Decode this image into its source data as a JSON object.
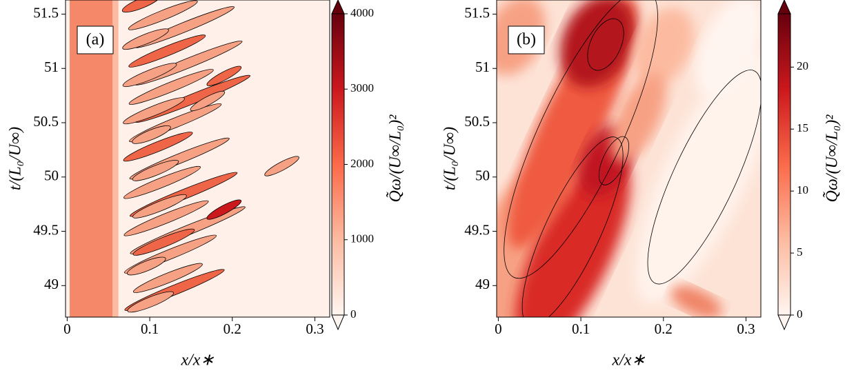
{
  "chart_data": [
    {
      "type": "contour",
      "panel_label": "(a)",
      "xlabel": "x/x∗",
      "ylabel": "t/(L₀/U∞)",
      "xlim": [
        -0.002,
        0.318
      ],
      "xticks": [
        0,
        0.1,
        0.2,
        0.3
      ],
      "ylim": [
        48.71,
        51.63
      ],
      "yticks": [
        49,
        49.5,
        50,
        50.5,
        51,
        51.5
      ],
      "colorbar": {
        "label": "Q̃ω/(U∞/L₀)²",
        "lim": [
          0,
          4000
        ],
        "ticks": [
          0,
          1000,
          2000,
          3000,
          4000
        ],
        "colormap": "Reds",
        "extend": "both"
      }
    },
    {
      "type": "contour",
      "panel_label": "(b)",
      "xlabel": "x/x∗",
      "ylabel": "t/(L₀/U∞)",
      "xlim": [
        -0.002,
        0.318
      ],
      "xticks": [
        0,
        0.1,
        0.2,
        0.3
      ],
      "ylim": [
        48.71,
        51.63
      ],
      "yticks": [
        49,
        49.5,
        50,
        50.5,
        51,
        51.5
      ],
      "colorbar": {
        "label": "Q̃ω/(U∞/L₀)²",
        "lim": [
          0,
          24.3
        ],
        "ticks": [
          0,
          5,
          10,
          15,
          20
        ],
        "colormap": "Reds",
        "extend": "both"
      }
    }
  ]
}
